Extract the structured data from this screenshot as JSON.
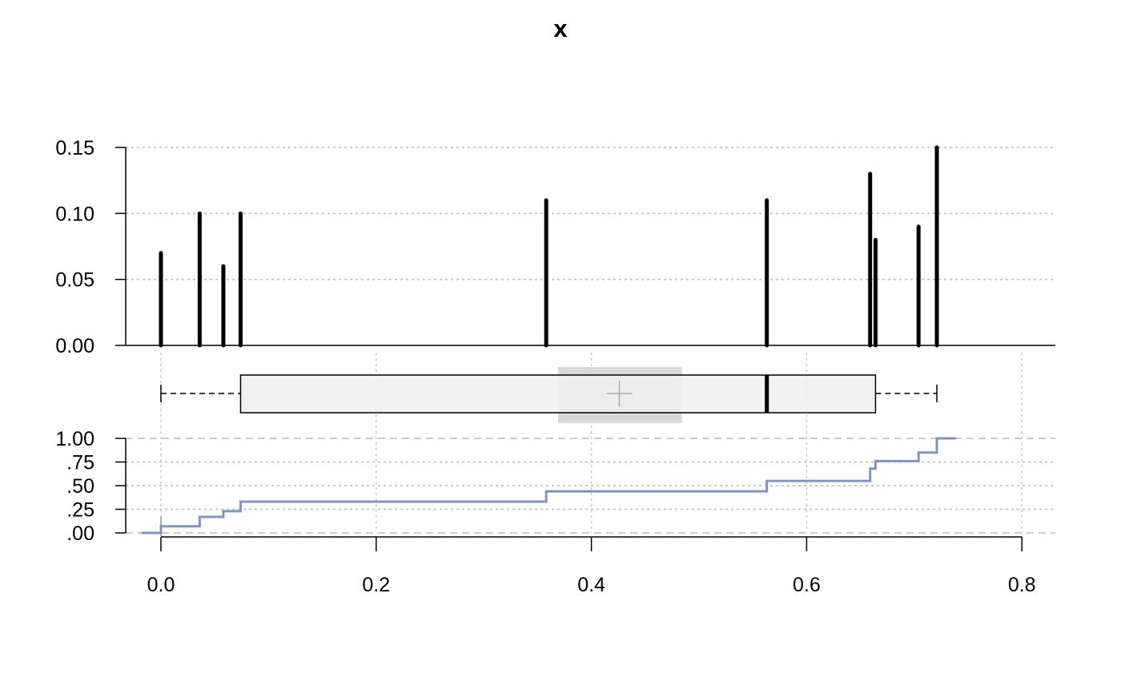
{
  "title": "x",
  "chart_data": [
    {
      "type": "bar",
      "subtype": "spike-plot",
      "x": [
        0.0,
        0.036,
        0.058,
        0.074,
        0.358,
        0.563,
        0.659,
        0.664,
        0.704,
        0.721
      ],
      "values": [
        0.07,
        0.1,
        0.06,
        0.1,
        0.11,
        0.11,
        0.13,
        0.08,
        0.09,
        0.15
      ],
      "ylim": [
        0,
        0.15
      ],
      "yticks": [
        "0.00",
        "0.05",
        "0.10",
        "0.15"
      ],
      "grid": true,
      "color": "#000000"
    },
    {
      "type": "boxplot",
      "whisker_low": 0.0,
      "q1": 0.074,
      "median": 0.563,
      "q3": 0.664,
      "whisker_high": 0.721,
      "mean": 0.426,
      "mean_band": [
        0.369,
        0.484
      ],
      "box_color": "#f0f0f0",
      "band_color": "#d9d9d9"
    },
    {
      "type": "line",
      "subtype": "ecdf-step",
      "x": [
        0.0,
        0.036,
        0.058,
        0.074,
        0.358,
        0.563,
        0.659,
        0.664,
        0.704,
        0.721
      ],
      "y": [
        0.07,
        0.17,
        0.23,
        0.33,
        0.44,
        0.55,
        0.68,
        0.76,
        0.85,
        1.0
      ],
      "ylim": [
        0,
        1
      ],
      "yticks": [
        ".00",
        ".25",
        ".50",
        ".75",
        "1.00"
      ],
      "color": "#8094c4"
    }
  ],
  "x_axis": {
    "xlim": [
      0.0,
      0.8
    ],
    "ticks": [
      0.0,
      0.2,
      0.4,
      0.6,
      0.8
    ],
    "tick_labels": [
      "0.0",
      "0.2",
      "0.4",
      "0.6",
      "0.8"
    ]
  }
}
